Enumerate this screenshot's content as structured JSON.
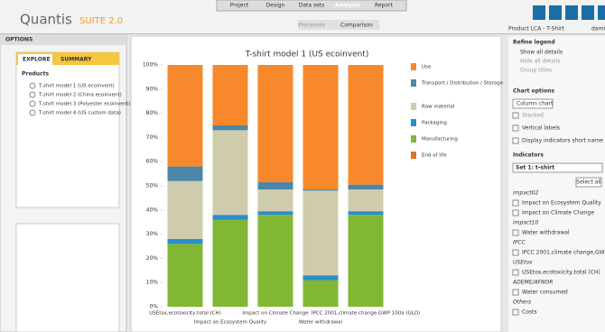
{
  "header": {
    "logo": "Quantis",
    "suite": "SUITE 2.0",
    "tabs": [
      "Project",
      "Design",
      "Data sets",
      "Analysis",
      "Report"
    ],
    "subtabs": [
      "Processes",
      "Comparison"
    ],
    "product": "Product LCA - T-Shirt",
    "user": "dami"
  },
  "left": {
    "title": "OPTIONS",
    "tabs": [
      "EXPLORE",
      "SUMMARY"
    ],
    "products_title": "Products",
    "products": [
      "T-shirt model 1 (US ecoinvent)",
      "T-shirt model 2 (China ecoinvent)",
      "T-shirt model 3 (Polyester ecoinvent)",
      "T-shirt model 4 (US custom data)"
    ]
  },
  "right": {
    "refine_title": "Refine legend",
    "refine": [
      "Show all details",
      "Hide all details",
      "Group titles"
    ],
    "chart_options_title": "Chart options",
    "chart_kind": "Column chart",
    "options": [
      "Stacked",
      "Vertical labels",
      "Display indicators short name"
    ],
    "indicators_title": "Indicators",
    "set": "Set 1: t-shirt",
    "select_all": "Select all",
    "groups": [
      {
        "name": "impact02",
        "items": [
          "Impact on Ecosystem Quality",
          "Impact on Climate Change"
        ]
      },
      {
        "name": "impact10",
        "items": [
          "Water withdrawal"
        ]
      },
      {
        "name": "IPCC",
        "items": [
          "IPCC 2001,climate change,GW"
        ]
      },
      {
        "name": "USEtox",
        "items": [
          "USEtox,ecotoxicity,total (CH)"
        ]
      },
      {
        "name": "ADEME/AFNOR",
        "items": [
          "Water consumed"
        ]
      },
      {
        "name": "Others",
        "items": [
          "Costs"
        ]
      }
    ]
  },
  "chart_data": {
    "type": "bar",
    "stacked": true,
    "title": "T-shirt model 1 (US ecoinvent)",
    "categories": [
      "USEtox,ecotoxicity,total (CH)",
      "Impact on Ecosystem Quality",
      "Impact on Climate Change",
      "Water withdrawal",
      "IPCC 2001,climate change,GWP 100a (GLO)"
    ],
    "series": [
      {
        "name": "Manufacturing",
        "color": "#82b733",
        "values": [
          26,
          36,
          38,
          11,
          38
        ]
      },
      {
        "name": "Packaging",
        "color": "#2a8dcc",
        "values": [
          2,
          2,
          1.5,
          2,
          1.5
        ]
      },
      {
        "name": "Raw material",
        "color": "#cfccad",
        "values": [
          24,
          35,
          9,
          35,
          9
        ]
      },
      {
        "name": "Transport / Distribution / Storage",
        "color": "#4d86a8",
        "values": [
          6,
          2,
          3,
          0.5,
          2
        ]
      },
      {
        "name": "Use",
        "color": "#f7882b",
        "values": [
          42,
          25,
          48.5,
          51.5,
          49.5
        ]
      },
      {
        "name": "End of life",
        "color": "#e0701f",
        "values": [
          0,
          0,
          0,
          0,
          0
        ]
      }
    ],
    "legend_order": [
      4,
      3,
      2,
      1,
      0,
      5
    ],
    "ylim": [
      0,
      100
    ],
    "yticks": [
      {
        "value": 0,
        "label": "0%"
      },
      {
        "value": 10,
        "label": "10%"
      },
      {
        "value": 20,
        "label": "20%"
      },
      {
        "value": 30,
        "label": "30%"
      },
      {
        "value": 40,
        "label": "40%"
      },
      {
        "value": 50,
        "label": "50%"
      },
      {
        "value": 60,
        "label": "60%"
      },
      {
        "value": 70,
        "label": "70%"
      },
      {
        "value": 80,
        "label": "80%"
      },
      {
        "value": 90,
        "label": "90%"
      },
      {
        "value": 100,
        "label": "100%"
      }
    ]
  }
}
